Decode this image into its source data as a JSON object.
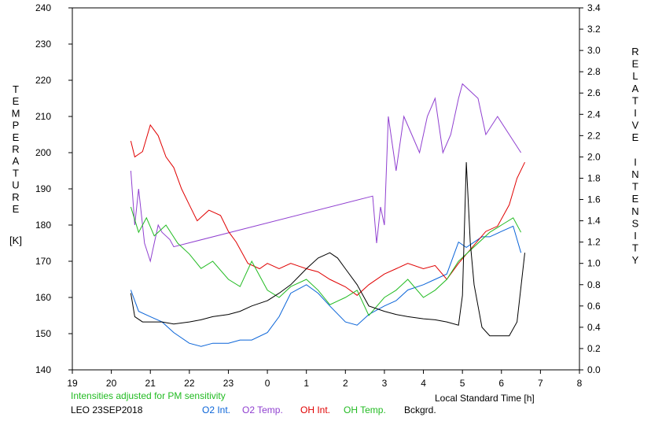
{
  "chart_data": {
    "type": "line",
    "x_axis": {
      "label": "Local Standard Time [h]",
      "range": [
        19,
        32
      ],
      "tick_values": [
        19,
        20,
        21,
        22,
        23,
        24,
        25,
        26,
        27,
        28,
        29,
        30,
        31,
        32
      ],
      "tick_labels": [
        "19",
        "20",
        "21",
        "22",
        "23",
        "0",
        "1",
        "2",
        "3",
        "4",
        "5",
        "6",
        "7",
        "8"
      ]
    },
    "y_left": {
      "label": "TEMPERATURE [K]",
      "label_letters": [
        "T",
        "E",
        "M",
        "P",
        "E",
        "R",
        "A",
        "T",
        "U",
        "R",
        "E"
      ],
      "unit": "[K]",
      "range": [
        140,
        240
      ],
      "ticks": [
        140,
        150,
        160,
        170,
        180,
        190,
        200,
        210,
        220,
        230,
        240
      ]
    },
    "y_right": {
      "label": "RELATIVE INTENSITY",
      "label_letters": [
        "R",
        "E",
        "L",
        "A",
        "T",
        "I",
        "V",
        "E",
        "",
        "I",
        "N",
        "T",
        "E",
        "N",
        "S",
        "I",
        "T",
        "Y"
      ],
      "range": [
        0,
        3.4
      ],
      "ticks": [
        "0.0",
        "0.2",
        "0.4",
        "0.6",
        "0.8",
        "1.0",
        "1.2",
        "1.4",
        "1.6",
        "1.8",
        "2.0",
        "2.2",
        "2.4",
        "2.6",
        "2.8",
        "3.0",
        "3.2",
        "3.4"
      ]
    },
    "note": "Intensities adjusted for PM sensitivity",
    "site_date": "LEO 23SEP2018",
    "series": [
      {
        "name": "O2 Int.",
        "axis": "right",
        "color": "#0a64d8",
        "points": [
          [
            20.5,
            0.75
          ],
          [
            20.7,
            0.55
          ],
          [
            21.0,
            0.5
          ],
          [
            21.3,
            0.45
          ],
          [
            21.6,
            0.35
          ],
          [
            22.0,
            0.25
          ],
          [
            22.3,
            0.22
          ],
          [
            22.6,
            0.25
          ],
          [
            23.0,
            0.25
          ],
          [
            23.3,
            0.28
          ],
          [
            23.6,
            0.28
          ],
          [
            24.0,
            0.35
          ],
          [
            24.3,
            0.5
          ],
          [
            24.6,
            0.72
          ],
          [
            25.0,
            0.8
          ],
          [
            25.3,
            0.72
          ],
          [
            25.6,
            0.6
          ],
          [
            26.0,
            0.45
          ],
          [
            26.3,
            0.42
          ],
          [
            26.6,
            0.52
          ],
          [
            27.0,
            0.6
          ],
          [
            27.3,
            0.65
          ],
          [
            27.6,
            0.75
          ],
          [
            28.0,
            0.8
          ],
          [
            28.3,
            0.85
          ],
          [
            28.6,
            0.9
          ],
          [
            28.9,
            1.2
          ],
          [
            29.1,
            1.15
          ],
          [
            29.5,
            1.25
          ],
          [
            29.7,
            1.25
          ],
          [
            30.0,
            1.3
          ],
          [
            30.3,
            1.35
          ],
          [
            30.5,
            1.1
          ]
        ]
      },
      {
        "name": "O2 Temp.",
        "axis": "left",
        "color": "#9040d0",
        "points": [
          [
            20.5,
            195
          ],
          [
            20.6,
            180
          ],
          [
            20.7,
            190
          ],
          [
            20.85,
            175
          ],
          [
            21.0,
            170
          ],
          [
            21.2,
            180
          ],
          [
            21.3,
            178
          ],
          [
            21.5,
            176
          ],
          [
            21.6,
            174
          ],
          [
            26.7,
            188
          ],
          [
            26.8,
            175
          ],
          [
            26.9,
            185
          ],
          [
            27.0,
            180
          ],
          [
            27.1,
            210
          ],
          [
            27.3,
            195
          ],
          [
            27.5,
            210
          ],
          [
            27.7,
            205
          ],
          [
            27.9,
            200
          ],
          [
            28.1,
            210
          ],
          [
            28.3,
            215
          ],
          [
            28.5,
            200
          ],
          [
            28.7,
            205
          ],
          [
            28.9,
            215
          ],
          [
            29.0,
            219
          ],
          [
            29.4,
            215
          ],
          [
            29.6,
            205
          ],
          [
            29.9,
            210
          ],
          [
            30.2,
            205
          ],
          [
            30.5,
            200
          ]
        ]
      },
      {
        "name": "OH Int.",
        "axis": "right",
        "color": "#e00000",
        "points": [
          [
            20.5,
            2.15
          ],
          [
            20.6,
            2.0
          ],
          [
            20.8,
            2.05
          ],
          [
            21.0,
            2.3
          ],
          [
            21.2,
            2.2
          ],
          [
            21.4,
            2.0
          ],
          [
            21.6,
            1.9
          ],
          [
            21.8,
            1.7
          ],
          [
            22.0,
            1.55
          ],
          [
            22.2,
            1.4
          ],
          [
            22.5,
            1.5
          ],
          [
            22.8,
            1.45
          ],
          [
            23.0,
            1.3
          ],
          [
            23.2,
            1.2
          ],
          [
            23.5,
            1.0
          ],
          [
            23.8,
            0.95
          ],
          [
            24.0,
            1.0
          ],
          [
            24.3,
            0.95
          ],
          [
            24.6,
            1.0
          ],
          [
            25.0,
            0.95
          ],
          [
            25.3,
            0.92
          ],
          [
            25.6,
            0.85
          ],
          [
            26.0,
            0.78
          ],
          [
            26.3,
            0.7
          ],
          [
            26.6,
            0.8
          ],
          [
            27.0,
            0.9
          ],
          [
            27.3,
            0.95
          ],
          [
            27.6,
            1.0
          ],
          [
            28.0,
            0.95
          ],
          [
            28.3,
            0.98
          ],
          [
            28.6,
            0.85
          ],
          [
            28.9,
            1.0
          ],
          [
            29.6,
            1.3
          ],
          [
            29.9,
            1.35
          ],
          [
            30.2,
            1.55
          ],
          [
            30.4,
            1.8
          ],
          [
            30.6,
            1.95
          ]
        ]
      },
      {
        "name": "OH Temp.",
        "axis": "left",
        "color": "#22bb22",
        "points": [
          [
            20.5,
            185
          ],
          [
            20.7,
            178
          ],
          [
            20.9,
            182
          ],
          [
            21.1,
            177
          ],
          [
            21.4,
            180
          ],
          [
            21.7,
            175
          ],
          [
            22.0,
            172
          ],
          [
            22.3,
            168
          ],
          [
            22.6,
            170
          ],
          [
            23.0,
            165
          ],
          [
            23.3,
            163
          ],
          [
            23.6,
            170
          ],
          [
            24.0,
            162
          ],
          [
            24.3,
            160
          ],
          [
            24.6,
            163
          ],
          [
            25.0,
            165
          ],
          [
            25.3,
            162
          ],
          [
            25.6,
            158
          ],
          [
            26.0,
            160
          ],
          [
            26.3,
            162
          ],
          [
            26.6,
            155
          ],
          [
            27.0,
            160
          ],
          [
            27.3,
            162
          ],
          [
            27.6,
            165
          ],
          [
            28.0,
            160
          ],
          [
            28.3,
            162
          ],
          [
            28.6,
            165
          ],
          [
            28.9,
            170
          ],
          [
            29.7,
            178
          ],
          [
            30.0,
            180
          ],
          [
            30.3,
            182
          ],
          [
            30.5,
            178
          ]
        ]
      },
      {
        "name": "Bckgrd.",
        "axis": "right",
        "color": "#000000",
        "points": [
          [
            20.5,
            0.72
          ],
          [
            20.6,
            0.5
          ],
          [
            20.8,
            0.45
          ],
          [
            21.0,
            0.45
          ],
          [
            21.3,
            0.45
          ],
          [
            21.6,
            0.43
          ],
          [
            22.0,
            0.45
          ],
          [
            22.3,
            0.47
          ],
          [
            22.6,
            0.5
          ],
          [
            23.0,
            0.52
          ],
          [
            23.3,
            0.55
          ],
          [
            23.6,
            0.6
          ],
          [
            24.0,
            0.65
          ],
          [
            24.3,
            0.72
          ],
          [
            24.6,
            0.8
          ],
          [
            25.0,
            0.95
          ],
          [
            25.3,
            1.05
          ],
          [
            25.6,
            1.1
          ],
          [
            25.8,
            1.05
          ],
          [
            26.0,
            0.95
          ],
          [
            26.3,
            0.8
          ],
          [
            26.6,
            0.6
          ],
          [
            27.0,
            0.55
          ],
          [
            27.3,
            0.52
          ],
          [
            27.6,
            0.5
          ],
          [
            28.0,
            0.48
          ],
          [
            28.3,
            0.47
          ],
          [
            28.6,
            0.45
          ],
          [
            28.9,
            0.42
          ],
          [
            29.0,
            0.7
          ],
          [
            29.1,
            1.95
          ],
          [
            29.2,
            1.2
          ],
          [
            29.3,
            0.8
          ],
          [
            29.4,
            0.6
          ],
          [
            29.5,
            0.4
          ],
          [
            29.7,
            0.32
          ],
          [
            30.0,
            0.32
          ],
          [
            30.2,
            0.32
          ],
          [
            30.4,
            0.45
          ],
          [
            30.6,
            1.1
          ]
        ]
      }
    ]
  }
}
